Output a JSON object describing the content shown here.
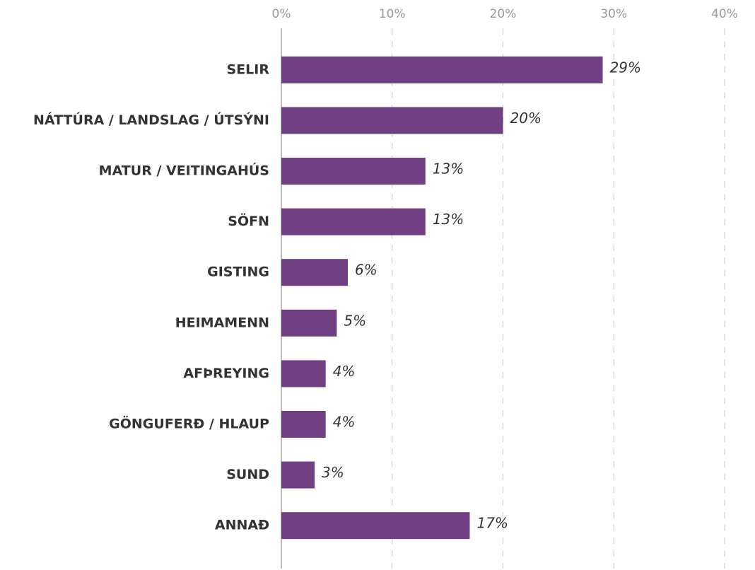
{
  "chart_data": {
    "type": "hbar",
    "categories": [
      "SELIR",
      "NÁTTÚRA / LANDSLAG / ÚTSÝNI",
      "MATUR / VEITINGAHÚS",
      "SÖFN",
      "GISTING",
      "HEIMAMENN",
      "AFÞREYING",
      "GÖNGUFERÐ / HLAUP",
      "SUND",
      "ANNAÐ"
    ],
    "values": [
      29,
      20,
      13,
      13,
      6,
      5,
      4,
      4,
      3,
      17
    ],
    "value_labels": [
      "29%",
      "20%",
      "13%",
      "13%",
      "6%",
      "5%",
      "4%",
      "4%",
      "3%",
      "17%"
    ],
    "color": "#714083",
    "xlim": [
      0,
      40
    ],
    "xticks": [
      {
        "value": 0,
        "label": "0%"
      },
      {
        "value": 10,
        "label": "10%"
      },
      {
        "value": 20,
        "label": "20%"
      },
      {
        "value": 30,
        "label": "30%"
      },
      {
        "value": 40,
        "label": "40%"
      }
    ],
    "grid": true
  }
}
